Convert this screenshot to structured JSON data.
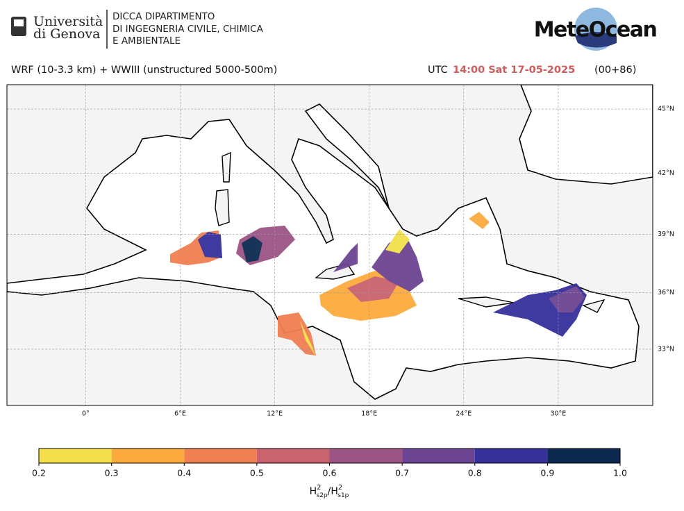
{
  "header": {
    "university": [
      "Università",
      "di Genova"
    ],
    "department": [
      "DICCA DIPARTIMENTO",
      "DI INGEGNERIA CIVILE, CHIMICA",
      "E AMBIENTALE"
    ],
    "brand": "MeteOcean"
  },
  "title": "WRF (10-3.3 km) + WWIII (unstructured 5000-500m)",
  "time": {
    "prefix": "UTC",
    "value": "14:00 Sat 17-05-2025",
    "lead": "(00+86)"
  },
  "map": {
    "xlim": [
      -5,
      36
    ],
    "ylim": [
      29.9,
      46.1
    ],
    "xticks": [
      {
        "value": 0,
        "label": "0°"
      },
      {
        "value": 6,
        "label": "6°E"
      },
      {
        "value": 12,
        "label": "12°E"
      },
      {
        "value": 18,
        "label": "18°E"
      },
      {
        "value": 24,
        "label": "24°E"
      },
      {
        "value": 30,
        "label": "30°E"
      }
    ],
    "yticks": [
      {
        "value": 33,
        "label": "33°N"
      },
      {
        "value": 36,
        "label": "36°N"
      },
      {
        "value": 39,
        "label": "39°N"
      },
      {
        "value": 42,
        "label": "42°N"
      },
      {
        "value": 45,
        "label": "45°N"
      }
    ],
    "grid": true
  },
  "colorbar": {
    "ticks": [
      0.2,
      0.3,
      0.4,
      0.5,
      0.6,
      0.7,
      0.8,
      0.9,
      {
        "value": 1,
        "label": "1.0"
      }
    ],
    "colors": [
      "#f3e04b",
      "#fcaa3e",
      "#f07f52",
      "#c9636e",
      "#9b5585",
      "#6c4592",
      "#35309a",
      "#0c2a50"
    ],
    "label": [
      "H",
      "2",
      "s2p",
      "/",
      "H",
      "2",
      "s1p"
    ]
  }
}
